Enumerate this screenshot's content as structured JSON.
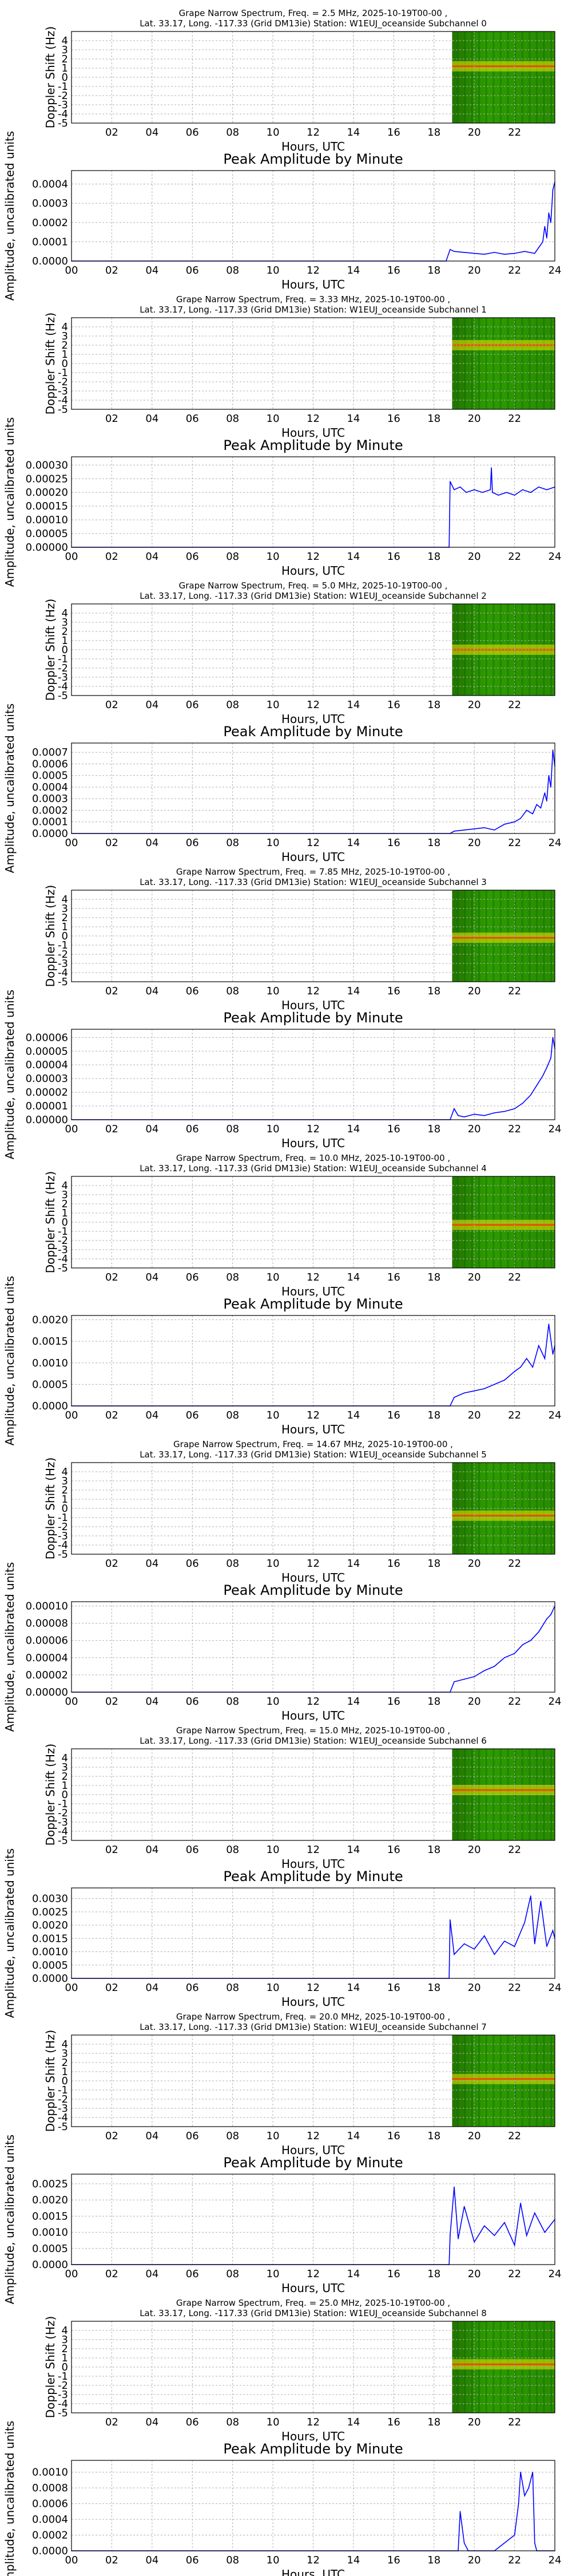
{
  "colors": {
    "line": "#0000ff",
    "grid": "#b0b0b0",
    "spectrum_dark_green": "#006400",
    "spectrum_green": "#2e9b00",
    "spectrum_yellow": "#f2e600",
    "spectrum_red": "#ff3300"
  },
  "chart_data": [
    {
      "type": "heatmap",
      "title": "Grape Narrow Spectrum, Freq. = 2.5 MHz, 2025-10-19T00-00 ,",
      "subtitle": "Lat.  33.17, Long. -117.33 (Grid DM13ie) Station: W1EUJ_oceanside Subchannel 0",
      "xlabel": "Hours, UTC",
      "ylabel": "Doppler Shift (Hz)",
      "x_ticks": [
        "02",
        "04",
        "06",
        "08",
        "10",
        "12",
        "14",
        "16",
        "18",
        "20",
        "22"
      ],
      "y_ticks": [
        "4",
        "3",
        "2",
        "1",
        "0",
        "-1",
        "-2",
        "-3",
        "-4",
        "-5"
      ],
      "xlim": [
        0,
        24
      ],
      "ylim": [
        -5,
        5
      ],
      "data_start_hour": 18.9,
      "trace_doppler": 1.2
    },
    {
      "type": "line",
      "title": "Peak Amplitude by Minute",
      "xlabel": "Hours, UTC",
      "ylabel": "Amplitude, uncalibrated units",
      "x_ticks": [
        "00",
        "02",
        "04",
        "06",
        "08",
        "10",
        "12",
        "14",
        "16",
        "18",
        "20",
        "22",
        "24"
      ],
      "y_ticks": [
        "0.0000",
        "0.0001",
        "0.0002",
        "0.0003",
        "0.0004"
      ],
      "xlim": [
        0,
        24
      ],
      "ylim": [
        0,
        0.00047
      ],
      "x": [
        0,
        18.6,
        18.8,
        19.0,
        19.5,
        20.0,
        20.5,
        21.0,
        21.5,
        22.0,
        22.5,
        23.0,
        23.2,
        23.4,
        23.5,
        23.6,
        23.7,
        23.8,
        23.9,
        24.0
      ],
      "y": [
        0,
        0,
        6e-05,
        5e-05,
        4.5e-05,
        4e-05,
        3.5e-05,
        4.5e-05,
        3.5e-05,
        4e-05,
        5e-05,
        4e-05,
        7e-05,
        0.0001,
        0.00018,
        0.00012,
        0.00025,
        0.0002,
        0.00037,
        0.00041
      ]
    },
    {
      "type": "heatmap",
      "title": "Grape Narrow Spectrum, Freq. = 3.33 MHz, 2025-10-19T00-00 ,",
      "subtitle": "Lat.  33.17, Long. -117.33 (Grid DM13ie) Station: W1EUJ_oceanside Subchannel 1",
      "xlabel": "Hours, UTC",
      "ylabel": "Doppler Shift (Hz)",
      "x_ticks": [
        "02",
        "04",
        "06",
        "08",
        "10",
        "12",
        "14",
        "16",
        "18",
        "20",
        "22"
      ],
      "y_ticks": [
        "4",
        "3",
        "2",
        "1",
        "0",
        "-1",
        "-2",
        "-3",
        "-4",
        "-5"
      ],
      "xlim": [
        0,
        24
      ],
      "ylim": [
        -5,
        5
      ],
      "data_start_hour": 18.9,
      "trace_doppler": 2.0
    },
    {
      "type": "line",
      "title": "Peak Amplitude by Minute",
      "xlabel": "Hours, UTC",
      "ylabel": "Amplitude, uncalibrated units",
      "x_ticks": [
        "00",
        "02",
        "04",
        "06",
        "08",
        "10",
        "12",
        "14",
        "16",
        "18",
        "20",
        "22",
        "24"
      ],
      "y_ticks": [
        "0.00000",
        "0.00005",
        "0.00010",
        "0.00015",
        "0.00020",
        "0.00025",
        "0.00030"
      ],
      "xlim": [
        0,
        24
      ],
      "ylim": [
        0,
        0.00033
      ],
      "x": [
        0,
        18.75,
        18.8,
        19.0,
        19.3,
        19.6,
        20.0,
        20.4,
        20.8,
        20.85,
        20.9,
        21.2,
        21.6,
        22.0,
        22.4,
        22.8,
        23.2,
        23.6,
        24.0
      ],
      "y": [
        0,
        0,
        0.00024,
        0.00021,
        0.00022,
        0.0002,
        0.00021,
        0.0002,
        0.00021,
        0.00029,
        0.0002,
        0.00019,
        0.0002,
        0.00019,
        0.00021,
        0.0002,
        0.00022,
        0.00021,
        0.00022
      ]
    },
    {
      "type": "heatmap",
      "title": "Grape Narrow Spectrum, Freq. = 5.0 MHz, 2025-10-19T00-00 ,",
      "subtitle": "Lat.  33.17, Long. -117.33 (Grid DM13ie) Station: W1EUJ_oceanside Subchannel 2",
      "xlabel": "Hours, UTC",
      "ylabel": "Doppler Shift (Hz)",
      "x_ticks": [
        "02",
        "04",
        "06",
        "08",
        "10",
        "12",
        "14",
        "16",
        "18",
        "20",
        "22"
      ],
      "y_ticks": [
        "4",
        "3",
        "2",
        "1",
        "0",
        "-1",
        "-2",
        "-3",
        "-4",
        "-5"
      ],
      "xlim": [
        0,
        24
      ],
      "ylim": [
        -5,
        5
      ],
      "data_start_hour": 18.9,
      "trace_doppler": 0.0
    },
    {
      "type": "line",
      "title": "Peak Amplitude by Minute",
      "xlabel": "Hours, UTC",
      "ylabel": "Amplitude, uncalibrated units",
      "x_ticks": [
        "00",
        "02",
        "04",
        "06",
        "08",
        "10",
        "12",
        "14",
        "16",
        "18",
        "20",
        "22",
        "24"
      ],
      "y_ticks": [
        "0.0000",
        "0.0001",
        "0.0002",
        "0.0003",
        "0.0004",
        "0.0005",
        "0.0006",
        "0.0007"
      ],
      "xlim": [
        0,
        24
      ],
      "ylim": [
        0,
        0.00078
      ],
      "x": [
        0,
        18.8,
        19.0,
        19.5,
        20.0,
        20.5,
        21.0,
        21.5,
        22.0,
        22.3,
        22.6,
        22.9,
        23.1,
        23.3,
        23.5,
        23.6,
        23.7,
        23.8,
        23.9,
        24.0
      ],
      "y": [
        0,
        0,
        2e-05,
        3e-05,
        4e-05,
        5e-05,
        3e-05,
        8e-05,
        0.0001,
        0.00013,
        0.0002,
        0.00017,
        0.00025,
        0.00022,
        0.00035,
        0.00028,
        0.0005,
        0.0004,
        0.00072,
        0.00058
      ]
    },
    {
      "type": "heatmap",
      "title": "Grape Narrow Spectrum, Freq. = 7.85 MHz, 2025-10-19T00-00 ,",
      "subtitle": "Lat.  33.17, Long. -117.33 (Grid DM13ie) Station: W1EUJ_oceanside Subchannel 3",
      "xlabel": "Hours, UTC",
      "ylabel": "Doppler Shift (Hz)",
      "x_ticks": [
        "02",
        "04",
        "06",
        "08",
        "10",
        "12",
        "14",
        "16",
        "18",
        "20",
        "22"
      ],
      "y_ticks": [
        "4",
        "3",
        "2",
        "1",
        "0",
        "-1",
        "-2",
        "-3",
        "-4",
        "-5"
      ],
      "xlim": [
        0,
        24
      ],
      "ylim": [
        -5,
        5
      ],
      "data_start_hour": 18.9,
      "trace_doppler": -0.2
    },
    {
      "type": "line",
      "title": "Peak Amplitude by Minute",
      "xlabel": "Hours, UTC",
      "ylabel": "Amplitude, uncalibrated units",
      "x_ticks": [
        "00",
        "02",
        "04",
        "06",
        "08",
        "10",
        "12",
        "14",
        "16",
        "18",
        "20",
        "22",
        "24"
      ],
      "y_ticks": [
        "0.00000",
        "0.00001",
        "0.00002",
        "0.00003",
        "0.00004",
        "0.00005",
        "0.00006"
      ],
      "xlim": [
        0,
        24
      ],
      "ylim": [
        0,
        6.6e-05
      ],
      "x": [
        0,
        18.8,
        19.0,
        19.2,
        19.5,
        20.0,
        20.5,
        21.0,
        21.5,
        22.0,
        22.4,
        22.8,
        23.1,
        23.4,
        23.6,
        23.8,
        23.9,
        24.0
      ],
      "y": [
        0,
        0,
        8e-06,
        3e-06,
        2e-06,
        4e-06,
        3e-06,
        5e-06,
        6e-06,
        8e-06,
        1.2e-05,
        1.8e-05,
        2.5e-05,
        3.2e-05,
        3.8e-05,
        4.5e-05,
        6e-05,
        5.2e-05
      ]
    },
    {
      "type": "heatmap",
      "title": "Grape Narrow Spectrum, Freq. = 10.0 MHz, 2025-10-19T00-00 ,",
      "subtitle": "Lat.  33.17, Long. -117.33 (Grid DM13ie) Station: W1EUJ_oceanside Subchannel 4",
      "xlabel": "Hours, UTC",
      "ylabel": "Doppler Shift (Hz)",
      "x_ticks": [
        "02",
        "04",
        "06",
        "08",
        "10",
        "12",
        "14",
        "16",
        "18",
        "20",
        "22"
      ],
      "y_ticks": [
        "4",
        "3",
        "2",
        "1",
        "0",
        "-1",
        "-2",
        "-3",
        "-4",
        "-5"
      ],
      "xlim": [
        0,
        24
      ],
      "ylim": [
        -5,
        5
      ],
      "data_start_hour": 18.9,
      "trace_doppler": -0.3
    },
    {
      "type": "line",
      "title": "Peak Amplitude by Minute",
      "xlabel": "Hours, UTC",
      "ylabel": "Amplitude, uncalibrated units",
      "x_ticks": [
        "00",
        "02",
        "04",
        "06",
        "08",
        "10",
        "12",
        "14",
        "16",
        "18",
        "20",
        "22",
        "24"
      ],
      "y_ticks": [
        "0.0000",
        "0.0005",
        "0.0010",
        "0.0015",
        "0.0020"
      ],
      "xlim": [
        0,
        24
      ],
      "ylim": [
        0,
        0.0021
      ],
      "x": [
        0,
        18.8,
        19.0,
        19.5,
        20.0,
        20.5,
        21.0,
        21.5,
        22.0,
        22.3,
        22.6,
        22.9,
        23.2,
        23.5,
        23.7,
        23.9,
        24.0
      ],
      "y": [
        0,
        0,
        0.0002,
        0.0003,
        0.00035,
        0.0004,
        0.0005,
        0.0006,
        0.0008,
        0.0009,
        0.0011,
        0.0009,
        0.0014,
        0.0011,
        0.0019,
        0.0012,
        0.0014
      ]
    },
    {
      "type": "heatmap",
      "title": "Grape Narrow Spectrum, Freq. = 14.67 MHz, 2025-10-19T00-00 ,",
      "subtitle": "Lat.  33.17, Long. -117.33 (Grid DM13ie) Station: W1EUJ_oceanside Subchannel 5",
      "xlabel": "Hours, UTC",
      "ylabel": "Doppler Shift (Hz)",
      "x_ticks": [
        "02",
        "04",
        "06",
        "08",
        "10",
        "12",
        "14",
        "16",
        "18",
        "20",
        "22"
      ],
      "y_ticks": [
        "4",
        "3",
        "2",
        "1",
        "0",
        "-1",
        "-2",
        "-3",
        "-4",
        "-5"
      ],
      "xlim": [
        0,
        24
      ],
      "ylim": [
        -5,
        5
      ],
      "data_start_hour": 18.9,
      "trace_doppler": -0.8
    },
    {
      "type": "line",
      "title": "Peak Amplitude by Minute",
      "xlabel": "Hours, UTC",
      "ylabel": "Amplitude, uncalibrated units",
      "x_ticks": [
        "00",
        "02",
        "04",
        "06",
        "08",
        "10",
        "12",
        "14",
        "16",
        "18",
        "20",
        "22",
        "24"
      ],
      "y_ticks": [
        "0.00000",
        "0.00002",
        "0.00004",
        "0.00006",
        "0.00008",
        "0.00010"
      ],
      "xlim": [
        0,
        24
      ],
      "ylim": [
        0,
        0.000105
      ],
      "x": [
        0,
        18.8,
        19.0,
        19.5,
        20.0,
        20.5,
        21.0,
        21.5,
        22.0,
        22.4,
        22.8,
        23.2,
        23.6,
        23.8,
        24.0
      ],
      "y": [
        0,
        0,
        1.2e-05,
        1.5e-05,
        1.8e-05,
        2.5e-05,
        3e-05,
        4e-05,
        4.5e-05,
        5.5e-05,
        6e-05,
        7e-05,
        8.5e-05,
        9e-05,
        0.0001
      ]
    },
    {
      "type": "heatmap",
      "title": "Grape Narrow Spectrum, Freq. = 15.0 MHz, 2025-10-19T00-00 ,",
      "subtitle": "Lat.  33.17, Long. -117.33 (Grid DM13ie) Station: W1EUJ_oceanside Subchannel 6",
      "xlabel": "Hours, UTC",
      "ylabel": "Doppler Shift (Hz)",
      "x_ticks": [
        "02",
        "04",
        "06",
        "08",
        "10",
        "12",
        "14",
        "16",
        "18",
        "20",
        "22"
      ],
      "y_ticks": [
        "4",
        "3",
        "2",
        "1",
        "0",
        "-1",
        "-2",
        "-3",
        "-4",
        "-5"
      ],
      "xlim": [
        0,
        24
      ],
      "ylim": [
        -5,
        5
      ],
      "data_start_hour": 18.9,
      "trace_doppler": 0.5
    },
    {
      "type": "line",
      "title": "Peak Amplitude by Minute",
      "xlabel": "Hours, UTC",
      "ylabel": "Amplitude, uncalibrated units",
      "x_ticks": [
        "00",
        "02",
        "04",
        "06",
        "08",
        "10",
        "12",
        "14",
        "16",
        "18",
        "20",
        "22",
        "24"
      ],
      "y_ticks": [
        "0.0000",
        "0.0005",
        "0.0010",
        "0.0015",
        "0.0020",
        "0.0025",
        "0.0030"
      ],
      "xlim": [
        0,
        24
      ],
      "ylim": [
        0,
        0.0034
      ],
      "x": [
        0,
        18.75,
        18.8,
        19.0,
        19.5,
        20.0,
        20.5,
        21.0,
        21.5,
        22.0,
        22.5,
        22.8,
        23.0,
        23.3,
        23.6,
        23.9,
        24.0
      ],
      "y": [
        0,
        0,
        0.0022,
        0.0009,
        0.0013,
        0.0011,
        0.0016,
        0.0009,
        0.0014,
        0.0012,
        0.0021,
        0.0031,
        0.0013,
        0.0029,
        0.0012,
        0.0018,
        0.0015
      ]
    },
    {
      "type": "heatmap",
      "title": "Grape Narrow Spectrum, Freq. = 20.0 MHz, 2025-10-19T00-00 ,",
      "subtitle": "Lat.  33.17, Long. -117.33 (Grid DM13ie) Station: W1EUJ_oceanside Subchannel 7",
      "xlabel": "Hours, UTC",
      "ylabel": "Doppler Shift (Hz)",
      "x_ticks": [
        "02",
        "04",
        "06",
        "08",
        "10",
        "12",
        "14",
        "16",
        "18",
        "20",
        "22"
      ],
      "y_ticks": [
        "4",
        "3",
        "2",
        "1",
        "0",
        "-1",
        "-2",
        "-3",
        "-4",
        "-5"
      ],
      "xlim": [
        0,
        24
      ],
      "ylim": [
        -5,
        5
      ],
      "data_start_hour": 18.9,
      "trace_doppler": 0.2
    },
    {
      "type": "line",
      "title": "Peak Amplitude by Minute",
      "xlabel": "Hours, UTC",
      "ylabel": "Amplitude, uncalibrated units",
      "x_ticks": [
        "00",
        "02",
        "04",
        "06",
        "08",
        "10",
        "12",
        "14",
        "16",
        "18",
        "20",
        "22",
        "24"
      ],
      "y_ticks": [
        "0.0000",
        "0.0005",
        "0.0010",
        "0.0015",
        "0.0020",
        "0.0025"
      ],
      "xlim": [
        0,
        24
      ],
      "ylim": [
        0,
        0.0028
      ],
      "x": [
        0,
        18.75,
        18.8,
        19.0,
        19.2,
        19.5,
        20.0,
        20.5,
        21.0,
        21.5,
        22.0,
        22.3,
        22.6,
        23.0,
        23.5,
        24.0
      ],
      "y": [
        0,
        0,
        0.0009,
        0.0024,
        0.0008,
        0.0018,
        0.0007,
        0.0012,
        0.0009,
        0.0013,
        0.0006,
        0.0019,
        0.0009,
        0.0016,
        0.001,
        0.0014
      ]
    },
    {
      "type": "heatmap",
      "title": "Grape Narrow Spectrum, Freq. = 25.0 MHz, 2025-10-19T00-00 ,",
      "subtitle": "Lat.  33.17, Long. -117.33 (Grid DM13ie) Station: W1EUJ_oceanside Subchannel 8",
      "xlabel": "Hours, UTC",
      "ylabel": "Doppler Shift (Hz)",
      "x_ticks": [
        "02",
        "04",
        "06",
        "08",
        "10",
        "12",
        "14",
        "16",
        "18",
        "20",
        "22"
      ],
      "y_ticks": [
        "4",
        "3",
        "2",
        "1",
        "0",
        "-1",
        "-2",
        "-3",
        "-4",
        "-5"
      ],
      "xlim": [
        0,
        24
      ],
      "ylim": [
        -5,
        5
      ],
      "data_start_hour": 18.9,
      "trace_doppler": 0.3
    },
    {
      "type": "line",
      "title": "Peak Amplitude by Minute",
      "xlabel": "Hours, UTC",
      "ylabel": "Amplitude, uncalibrated units",
      "x_ticks": [
        "00",
        "02",
        "04",
        "06",
        "08",
        "10",
        "12",
        "14",
        "16",
        "18",
        "20",
        "22",
        "24"
      ],
      "y_ticks": [
        "0.0000",
        "0.0002",
        "0.0004",
        "0.0006",
        "0.0008",
        "0.0010"
      ],
      "xlim": [
        0,
        24
      ],
      "ylim": [
        0,
        0.00115
      ],
      "x": [
        0,
        19.2,
        19.3,
        19.4,
        19.5,
        19.7,
        20.0,
        21.0,
        21.5,
        22.0,
        22.2,
        22.3,
        22.5,
        22.7,
        22.9,
        23.0,
        23.1,
        24.0
      ],
      "y": [
        0,
        0,
        0.0005,
        0.0003,
        0.0001,
        0,
        0,
        0,
        0.0001,
        0.0002,
        0.0006,
        0.001,
        0.0007,
        0.0008,
        0.001,
        0.0001,
        0,
        0
      ]
    }
  ]
}
